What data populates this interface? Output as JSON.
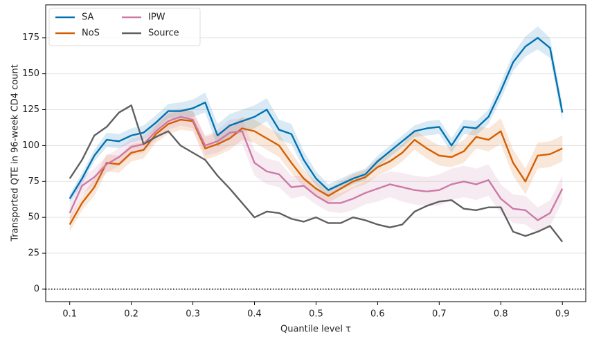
{
  "chart_data": {
    "type": "line",
    "xlabel": "Quantile level τ",
    "ylabel": "Transported QTE in 96-week CD4 count",
    "x": [
      0.1,
      0.12,
      0.14,
      0.16,
      0.18,
      0.2,
      0.22,
      0.24,
      0.26,
      0.28,
      0.3,
      0.32,
      0.34,
      0.36,
      0.38,
      0.4,
      0.42,
      0.44,
      0.46,
      0.48,
      0.5,
      0.52,
      0.54,
      0.56,
      0.58,
      0.6,
      0.62,
      0.64,
      0.66,
      0.68,
      0.7,
      0.72,
      0.74,
      0.76,
      0.78,
      0.8,
      0.82,
      0.84,
      0.86,
      0.88,
      0.9
    ],
    "series": [
      {
        "name": "SA",
        "color": "#0072b2",
        "values": [
          63,
          77,
          93,
          104,
          103,
          107,
          109,
          116,
          124,
          124,
          126,
          130,
          107,
          114,
          117,
          120,
          125,
          111,
          108,
          90,
          77,
          69,
          73,
          77,
          80,
          89,
          96,
          103,
          110,
          112,
          113,
          100,
          113,
          112,
          120,
          138,
          158,
          169,
          175,
          168,
          123
        ],
        "error": [
          3,
          4,
          4,
          5,
          5,
          5,
          5,
          5,
          5,
          6,
          6,
          7,
          8,
          8,
          8,
          8,
          8,
          7,
          7,
          6,
          5,
          4,
          4,
          4,
          4,
          4,
          4,
          4,
          4,
          5,
          5,
          5,
          5,
          5,
          5,
          6,
          6,
          7,
          8,
          7,
          6
        ]
      },
      {
        "name": "NoS",
        "color": "#d55e00",
        "values": [
          45,
          60,
          71,
          88,
          87,
          95,
          97,
          108,
          115,
          118,
          117,
          98,
          101,
          105,
          112,
          110,
          105,
          100,
          88,
          77,
          70,
          65,
          70,
          75,
          78,
          85,
          89,
          95,
          104,
          98,
          93,
          92,
          96,
          106,
          104,
          110,
          88,
          75,
          93,
          94,
          98
        ],
        "error": [
          5,
          5,
          6,
          6,
          6,
          6,
          6,
          6,
          7,
          7,
          7,
          8,
          8,
          8,
          8,
          8,
          8,
          8,
          7,
          6,
          5,
          5,
          5,
          5,
          5,
          6,
          6,
          6,
          7,
          7,
          7,
          7,
          8,
          8,
          8,
          9,
          9,
          9,
          9,
          9,
          9
        ]
      },
      {
        "name": "IPW",
        "color": "#cc79a7",
        "values": [
          53,
          72,
          78,
          87,
          92,
          99,
          101,
          110,
          117,
          120,
          118,
          100,
          103,
          109,
          110,
          88,
          82,
          80,
          71,
          72,
          65,
          60,
          60,
          63,
          67,
          70,
          73,
          71,
          69,
          68,
          69,
          73,
          75,
          73,
          76,
          63,
          56,
          55,
          48,
          53,
          70
        ],
        "error": [
          6,
          6,
          6,
          6,
          6,
          6,
          6,
          6,
          6,
          6,
          6,
          7,
          8,
          9,
          9,
          9,
          9,
          9,
          8,
          7,
          6,
          6,
          7,
          8,
          8,
          9,
          9,
          10,
          10,
          10,
          11,
          11,
          11,
          11,
          11,
          10,
          10,
          10,
          9,
          9,
          9
        ]
      },
      {
        "name": "Source",
        "color": "#5f5f5f",
        "values": [
          77,
          90,
          107,
          113,
          123,
          128,
          101,
          106,
          110,
          100,
          95,
          90,
          79,
          70,
          60,
          50,
          54,
          53,
          49,
          47,
          50,
          46,
          46,
          50,
          48,
          45,
          43,
          45,
          54,
          58,
          61,
          62,
          56,
          55,
          57,
          57,
          40,
          37,
          40,
          44,
          33
        ]
      }
    ],
    "xlim": [
      0.061,
      0.938
    ],
    "ylim": [
      -8.7,
      198
    ],
    "xticks": [
      0.1,
      0.2,
      0.3,
      0.4,
      0.5,
      0.6,
      0.7,
      0.8,
      0.9
    ],
    "yticks": [
      0,
      25,
      50,
      75,
      100,
      125,
      150,
      175
    ],
    "grid": "y",
    "hline": 0,
    "legend": "upper left"
  }
}
